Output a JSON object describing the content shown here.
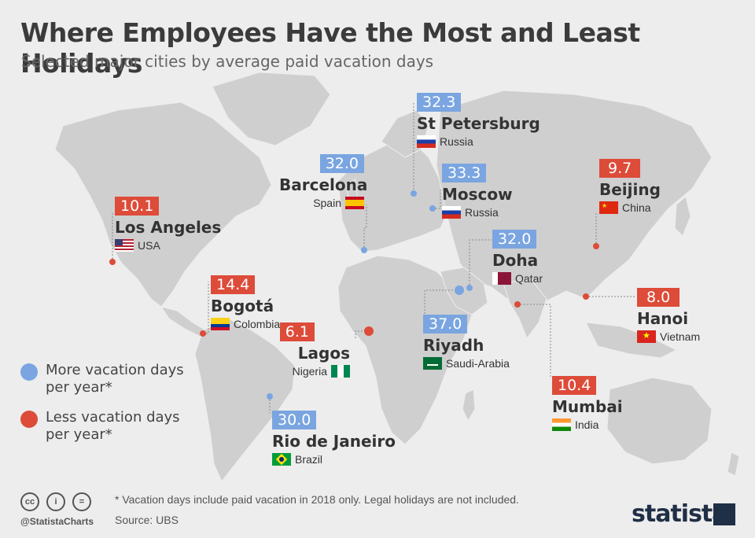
{
  "header": {
    "title": "Where Employees Have the Most and Least Holidays",
    "subtitle": "Selected major cities by average paid vacation days"
  },
  "colors": {
    "more": "#7aa5e0",
    "less": "#dd4b39",
    "land": "#cfcfcf",
    "ocean": "#ededed"
  },
  "cities": {
    "st_petersburg": {
      "value": "32.3",
      "name": "St Petersburg",
      "country": "Russia",
      "flag": "russia-flag"
    },
    "barcelona": {
      "value": "32.0",
      "name": "Barcelona",
      "country": "Spain",
      "flag": "spain-flag"
    },
    "moscow": {
      "value": "33.3",
      "name": "Moscow",
      "country": "Russia",
      "flag": "russia-flag"
    },
    "beijing": {
      "value": "9.7",
      "name": "Beijing",
      "country": "China",
      "flag": "china-flag"
    },
    "los_angeles": {
      "value": "10.1",
      "name": "Los Angeles",
      "country": "USA",
      "flag": "usa-flag"
    },
    "doha": {
      "value": "32.0",
      "name": "Doha",
      "country": "Qatar",
      "flag": "qatar-flag"
    },
    "bogota": {
      "value": "14.4",
      "name": "Bogotá",
      "country": "Colombia",
      "flag": "colombia-flag"
    },
    "hanoi": {
      "value": "8.0",
      "name": "Hanoi",
      "country": "Vietnam",
      "flag": "vietnam-flag"
    },
    "lagos": {
      "value": "6.1",
      "name": "Lagos",
      "country": "Nigeria",
      "flag": "nigeria-flag"
    },
    "riyadh": {
      "value": "37.0",
      "name": "Riyadh",
      "country": "Saudi-Arabia",
      "flag": "saudi-flag"
    },
    "mumbai": {
      "value": "10.4",
      "name": "Mumbai",
      "country": "India",
      "flag": "india-flag"
    },
    "rio": {
      "value": "30.0",
      "name": "Rio de Janeiro",
      "country": "Brazil",
      "flag": "brazil-flag"
    }
  },
  "legend": {
    "more": "More vacation days per year*",
    "less": "Less vacation days per year*"
  },
  "footer": {
    "note": "* Vacation days include paid vacation in 2018 only. Legal holidays are not included.",
    "source": "Source: UBS",
    "handle": "@StatistaCharts",
    "brand": "statista"
  }
}
